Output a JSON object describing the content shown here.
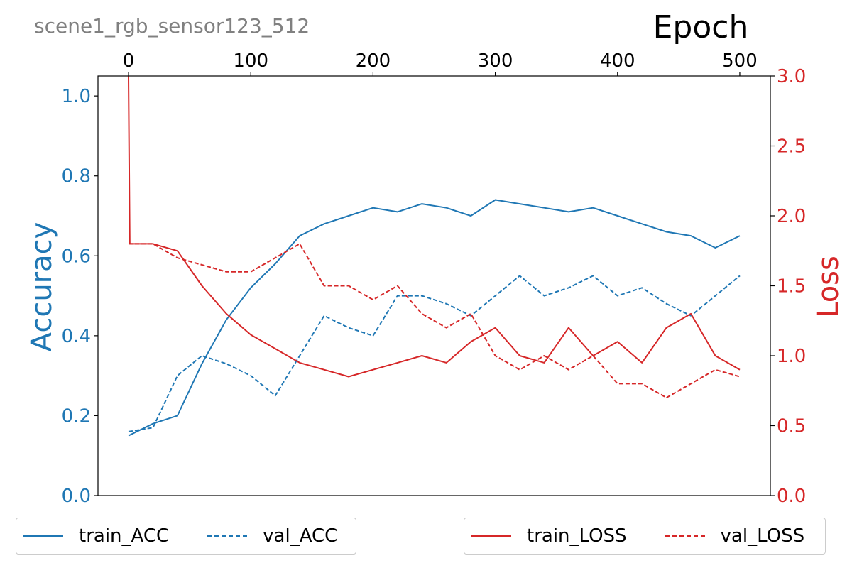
{
  "chart_data": {
    "type": "line",
    "title": "scene1_rgb_sensor123_512",
    "xlabel": "Epoch",
    "ylabel_left": "Accuracy",
    "ylabel_right": "Loss",
    "xlim": [
      -25,
      525
    ],
    "ylim_left": [
      0,
      1.05
    ],
    "ylim_right": [
      0,
      3.0
    ],
    "x_ticks": [
      0,
      100,
      200,
      300,
      400,
      500
    ],
    "y_ticks_left": [
      0.0,
      0.2,
      0.4,
      0.6,
      0.8,
      1.0
    ],
    "y_ticks_right": [
      0.0,
      0.5,
      1.0,
      1.5,
      2.0,
      2.5,
      3.0
    ],
    "x_ticks_position": "top",
    "grid": false,
    "legend_left": "bottom-left",
    "legend_right": "bottom-right",
    "colors": {
      "acc": "#1f77b4",
      "loss": "#d62728",
      "title": "#808080"
    },
    "series": [
      {
        "name": "train_ACC",
        "axis": "left",
        "style": "solid",
        "x": [
          0,
          20,
          40,
          60,
          80,
          100,
          120,
          140,
          160,
          180,
          200,
          220,
          240,
          260,
          280,
          300,
          320,
          340,
          360,
          380,
          400,
          420,
          440,
          460,
          480,
          500
        ],
        "values": [
          0.15,
          0.18,
          0.2,
          0.33,
          0.44,
          0.52,
          0.58,
          0.65,
          0.68,
          0.7,
          0.72,
          0.71,
          0.73,
          0.72,
          0.7,
          0.74,
          0.73,
          0.72,
          0.71,
          0.72,
          0.7,
          0.68,
          0.66,
          0.65,
          0.62,
          0.65
        ]
      },
      {
        "name": "val_ACC",
        "axis": "left",
        "style": "dashed",
        "x": [
          0,
          20,
          40,
          60,
          80,
          100,
          120,
          140,
          160,
          180,
          200,
          220,
          240,
          260,
          280,
          300,
          320,
          340,
          360,
          380,
          400,
          420,
          440,
          460,
          480,
          500
        ],
        "values": [
          0.16,
          0.17,
          0.3,
          0.35,
          0.33,
          0.3,
          0.25,
          0.35,
          0.45,
          0.42,
          0.4,
          0.5,
          0.5,
          0.48,
          0.45,
          0.5,
          0.55,
          0.5,
          0.52,
          0.55,
          0.5,
          0.52,
          0.48,
          0.45,
          0.5,
          0.55
        ]
      },
      {
        "name": "train_LOSS",
        "axis": "right",
        "style": "solid",
        "x": [
          0,
          1,
          20,
          40,
          60,
          80,
          100,
          120,
          140,
          160,
          180,
          200,
          220,
          240,
          260,
          280,
          300,
          320,
          340,
          360,
          380,
          400,
          420,
          440,
          460,
          480,
          500
        ],
        "values": [
          3.0,
          1.8,
          1.8,
          1.75,
          1.5,
          1.3,
          1.15,
          1.05,
          0.95,
          0.9,
          0.85,
          0.9,
          0.95,
          1.0,
          0.95,
          1.1,
          1.2,
          1.0,
          0.95,
          1.2,
          1.0,
          1.1,
          0.95,
          1.2,
          1.3,
          1.0,
          0.9
        ]
      },
      {
        "name": "val_LOSS",
        "axis": "right",
        "style": "dashed",
        "x": [
          0,
          20,
          40,
          60,
          80,
          100,
          120,
          140,
          160,
          180,
          200,
          220,
          240,
          260,
          280,
          300,
          320,
          340,
          360,
          380,
          400,
          420,
          440,
          460,
          480,
          500
        ],
        "values": [
          1.8,
          1.8,
          1.7,
          1.65,
          1.6,
          1.6,
          1.7,
          1.8,
          1.5,
          1.5,
          1.4,
          1.5,
          1.3,
          1.2,
          1.3,
          1.0,
          0.9,
          1.0,
          0.9,
          1.0,
          0.8,
          0.8,
          0.7,
          0.8,
          0.9,
          0.85
        ]
      }
    ]
  }
}
